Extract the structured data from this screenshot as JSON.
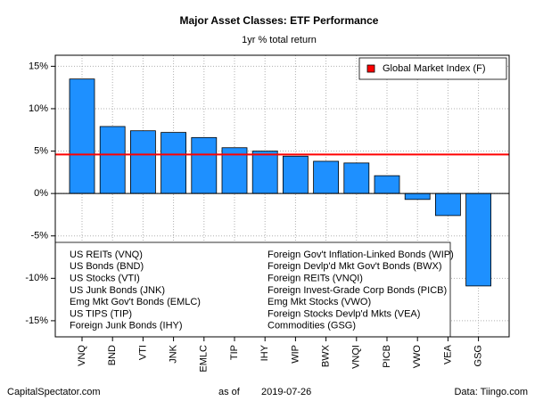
{
  "chart_data": {
    "type": "bar",
    "title": "Major Asset Classes: ETF Performance",
    "subtitle": "1yr % total return",
    "categories": [
      "VNQ",
      "BND",
      "VTI",
      "JNK",
      "EMLC",
      "TIP",
      "IHY",
      "WIP",
      "BWX",
      "VNQI",
      "PICB",
      "VWO",
      "VEA",
      "GSG"
    ],
    "values": [
      13.5,
      7.9,
      7.4,
      7.2,
      6.6,
      5.4,
      5.0,
      4.4,
      3.8,
      3.6,
      2.1,
      -0.7,
      -2.6,
      -10.9
    ],
    "color": "#1e90ff",
    "reference_line": {
      "name": "Global Market Index (F)",
      "value": 4.6,
      "color": "#ff0000"
    },
    "legend": "topright",
    "ylim": [
      -16.9,
      16.3
    ],
    "yticks": [
      {
        "value": -15,
        "label": "-15%"
      },
      {
        "value": -10,
        "label": "-10%"
      },
      {
        "value": -5,
        "label": "-5%"
      },
      {
        "value": 0,
        "label": "0%"
      },
      {
        "value": 5,
        "label": "5%"
      },
      {
        "value": 10,
        "label": "10%"
      },
      {
        "value": 15,
        "label": "15%"
      }
    ],
    "grid": true,
    "key_left": [
      "US REITs (VNQ)",
      "US Bonds (BND)",
      "US Stocks (VTI)",
      "US Junk Bonds (JNK)",
      "Emg Mkt Gov't Bonds (EMLC)",
      "US TIPS (TIP)",
      "Foreign Junk Bonds (IHY)"
    ],
    "key_right": [
      "Foreign Gov't Inflation-Linked Bonds (WIP)",
      "Foreign Devlp'd Mkt Gov't Bonds (BWX)",
      "Foreign REITs (VNQI)",
      "Foreign Invest-Grade Corp Bonds (PICB)",
      "Emg Mkt Stocks (VWO)",
      "Foreign Stocks Devlp'd Mkts (VEA)",
      "Commodities (GSG)"
    ],
    "footer_left": "CapitalSpectator.com",
    "footer_as_of": "as of",
    "footer_date": "2019-07-26",
    "footer_right": "Data: Tiingo.com"
  }
}
